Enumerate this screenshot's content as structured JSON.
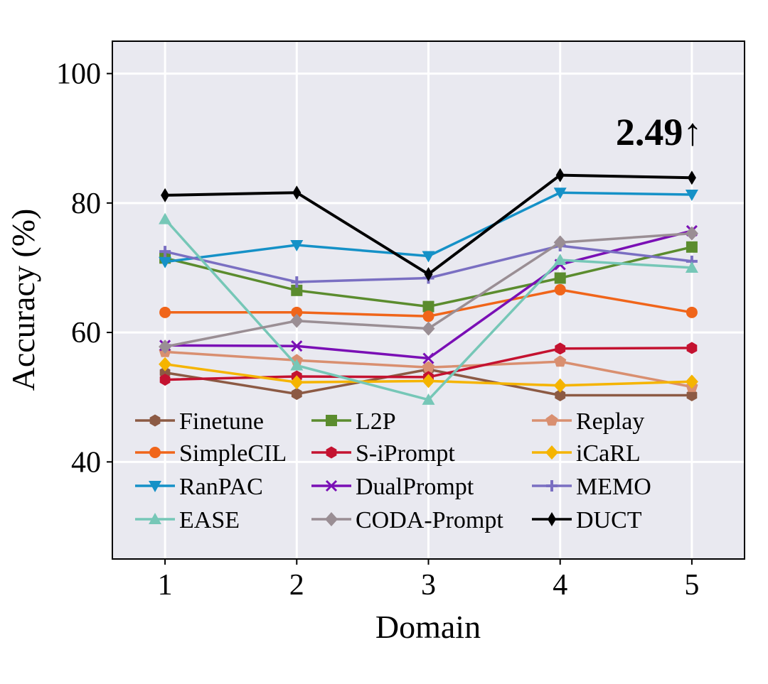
{
  "chart_data": {
    "type": "line",
    "title": "",
    "xlabel": "Domain",
    "ylabel": "Accuracy (%)",
    "x": [
      1,
      2,
      3,
      4,
      5
    ],
    "xlim": [
      0.6,
      5.4
    ],
    "ylim": [
      25,
      105
    ],
    "yticks": [
      40,
      60,
      80,
      100
    ],
    "grid": true,
    "legend_position": "lower-left",
    "annotation": {
      "text": "2.49↑",
      "x": 4.75,
      "y": 89
    },
    "series": [
      {
        "name": "Finetune",
        "color": "#8c5a44",
        "marker": "hexagon",
        "values": [
          53.8,
          50.5,
          54.3,
          50.3,
          50.3
        ]
      },
      {
        "name": "L2P",
        "color": "#5b8c2e",
        "marker": "square",
        "values": [
          71.5,
          66.5,
          64.0,
          68.4,
          73.2
        ]
      },
      {
        "name": "Replay",
        "color": "#d98f70",
        "marker": "pentagon",
        "values": [
          57.0,
          55.7,
          54.6,
          55.5,
          51.6
        ]
      },
      {
        "name": "SimpleCIL",
        "color": "#f0651a",
        "marker": "circle",
        "values": [
          63.1,
          63.1,
          62.5,
          66.6,
          63.1
        ]
      },
      {
        "name": "S-iPrompt",
        "color": "#c41230",
        "marker": "hexagon",
        "values": [
          52.7,
          53.2,
          53.1,
          57.5,
          57.6
        ]
      },
      {
        "name": "iCaRL",
        "color": "#f5b400",
        "marker": "diamond",
        "values": [
          55.1,
          52.3,
          52.5,
          51.8,
          52.4
        ]
      },
      {
        "name": "RanPAC",
        "color": "#1591c7",
        "marker": "triangle-down",
        "values": [
          70.9,
          73.5,
          71.8,
          81.6,
          81.3
        ]
      },
      {
        "name": "DualPrompt",
        "color": "#7a0fb5",
        "marker": "x",
        "values": [
          58.0,
          57.9,
          56.0,
          70.5,
          75.7
        ]
      },
      {
        "name": "MEMO",
        "color": "#7a6fc2",
        "marker": "plus",
        "values": [
          72.5,
          67.8,
          68.4,
          73.4,
          71.0
        ]
      },
      {
        "name": "EASE",
        "color": "#76c7b7",
        "marker": "triangle-up",
        "values": [
          77.5,
          54.9,
          49.6,
          71.2,
          70.0
        ]
      },
      {
        "name": "CODA-Prompt",
        "color": "#9a8e94",
        "marker": "diamond",
        "values": [
          57.8,
          61.8,
          60.6,
          73.9,
          75.3
        ]
      },
      {
        "name": "DUCT",
        "color": "#000000",
        "marker": "thin-diamond",
        "values": [
          81.2,
          81.6,
          69.0,
          84.3,
          83.9
        ]
      }
    ]
  }
}
